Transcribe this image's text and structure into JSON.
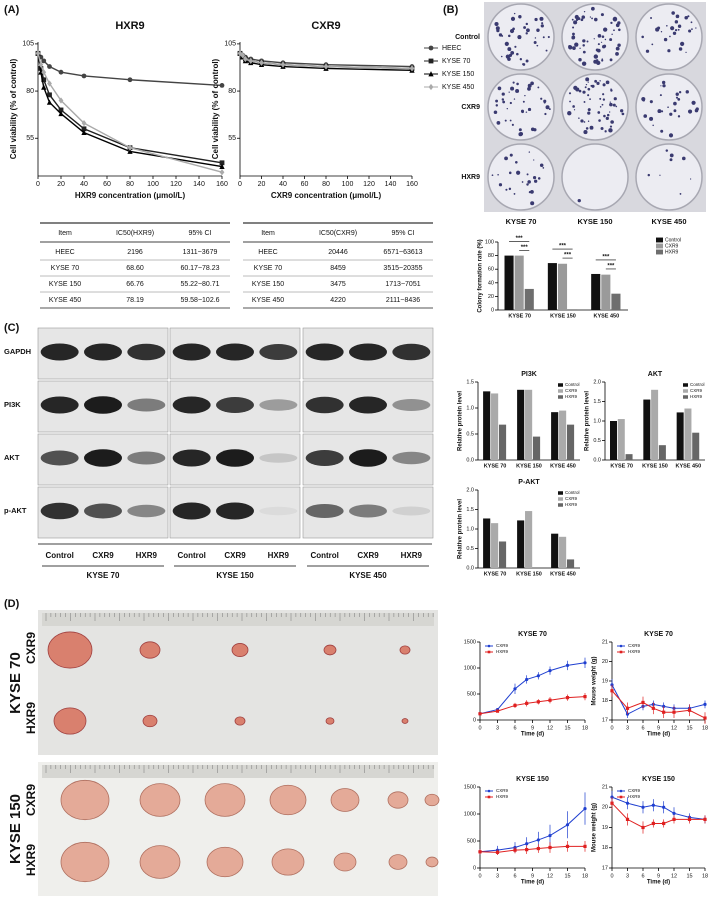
{
  "panels": [
    "(A)",
    "(B)",
    "(C)",
    "(D)"
  ],
  "tables": [
    {
      "columns": [
        "Item",
        "IC50(HXR9)",
        "95% CI"
      ],
      "rows": [
        [
          "HEEC",
          "2196",
          "1311~3679"
        ],
        [
          "KYSE 70",
          "68.60",
          "60.17~78.23"
        ],
        [
          "KYSE 150",
          "66.76",
          "55.22~80.71"
        ],
        [
          "KYSE 450",
          "78.19",
          "59.58~102.6"
        ]
      ]
    },
    {
      "columns": [
        "Item",
        "IC50(CXR9)",
        "95% CI"
      ],
      "rows": [
        [
          "HEEC",
          "20446",
          "6571~63613"
        ],
        [
          "KYSE 70",
          "8459",
          "3515~20355"
        ],
        [
          "KYSE 150",
          "3475",
          "1713~7051"
        ],
        [
          "KYSE 450",
          "4220",
          "2111~8436"
        ]
      ]
    }
  ],
  "plates": {
    "rows": [
      "Control",
      "CXR9",
      "HXR9"
    ],
    "columns": [
      "KYSE 70",
      "KYSE 150",
      "KYSE 450"
    ]
  },
  "blots": {
    "rows": [
      "GAPDH",
      "PI3K",
      "AKT",
      "p-AKT"
    ],
    "lanes": [
      "Control",
      "CXR9",
      "HXR9"
    ],
    "groups": [
      "KYSE 70",
      "KYSE 150",
      "KYSE 450"
    ]
  },
  "tumors": {
    "groups": [
      "KYSE 70",
      "KYSE 150"
    ],
    "rows": [
      "CXR9",
      "HXR9"
    ]
  },
  "chart_data": [
    {
      "type": "line",
      "title": "HXR9",
      "xlabel": "HXR9 concentration (μmol/L)",
      "ylabel": "Cell viability (% of control)",
      "x": [
        0,
        2.5,
        5,
        10,
        20,
        40,
        80,
        160
      ],
      "xlim": [
        0,
        160
      ],
      "xticks": [
        0,
        20,
        40,
        60,
        80,
        100,
        120,
        140,
        160
      ],
      "ylim": [
        35,
        106
      ],
      "yticks": [
        55,
        80,
        105
      ],
      "series": [
        {
          "name": "HEEC",
          "color": "#444444",
          "marker": "circle",
          "values": [
            100,
            98,
            96,
            93,
            90,
            88,
            86,
            83
          ]
        },
        {
          "name": "KYSE 70",
          "color": "#222222",
          "marker": "square",
          "values": [
            100,
            92,
            86,
            78,
            70,
            60,
            50,
            42
          ]
        },
        {
          "name": "KYSE 150",
          "color": "#000000",
          "marker": "triangle",
          "values": [
            100,
            90,
            82,
            74,
            68,
            58,
            48,
            40
          ]
        },
        {
          "name": "KYSE 450",
          "color": "#aaaaaa",
          "marker": "diamond",
          "values": [
            100,
            94,
            90,
            84,
            75,
            63,
            50,
            37
          ]
        }
      ]
    },
    {
      "type": "line",
      "title": "CXR9",
      "xlabel": "CXR9 concentration (μmol/L)",
      "ylabel": "Cell viability (% of control)",
      "x": [
        0,
        2.5,
        5,
        10,
        20,
        40,
        80,
        160
      ],
      "xlim": [
        0,
        160
      ],
      "xticks": [
        0,
        20,
        40,
        60,
        80,
        100,
        120,
        140,
        160
      ],
      "ylim": [
        35,
        106
      ],
      "yticks": [
        55,
        80,
        105
      ],
      "legend": "right",
      "series": [
        {
          "name": "HEEC",
          "color": "#444444",
          "marker": "circle",
          "values": [
            100,
            99,
            98,
            97,
            96,
            95,
            94,
            93
          ]
        },
        {
          "name": "KYSE 70",
          "color": "#222222",
          "marker": "square",
          "values": [
            100,
            98,
            97,
            96,
            95,
            94,
            93,
            92
          ]
        },
        {
          "name": "KYSE 150",
          "color": "#000000",
          "marker": "triangle",
          "values": [
            100,
            98,
            96,
            95,
            94,
            93,
            92,
            91
          ]
        },
        {
          "name": "KYSE 450",
          "color": "#aaaaaa",
          "marker": "diamond",
          "values": [
            100,
            99,
            97,
            96,
            95,
            94,
            93,
            92
          ]
        }
      ]
    },
    {
      "type": "bar",
      "ylabel": "Colony formation rate (%)",
      "categories": [
        "KYSE 70",
        "KYSE 150",
        "KYSE 450"
      ],
      "ylim": [
        0,
        100
      ],
      "yticks": [
        0,
        20,
        40,
        60,
        80,
        100
      ],
      "legend": "right",
      "annotations": [
        "***",
        "***",
        "***",
        "***",
        "***",
        "***"
      ],
      "series": [
        {
          "name": "Control",
          "color": "#111111",
          "values": [
            80,
            69,
            53
          ]
        },
        {
          "name": "CXR9",
          "color": "#9a9a9a",
          "values": [
            80,
            68,
            52
          ]
        },
        {
          "name": "HXR9",
          "color": "#6e6e6e",
          "values": [
            31,
            1,
            24
          ]
        }
      ]
    },
    {
      "type": "bar",
      "title": "PI3K",
      "ylabel": "Relative protein level",
      "categories": [
        "KYSE 70",
        "KYSE 150",
        "KYSE 450"
      ],
      "ylim": [
        0,
        1.5
      ],
      "yticks": [
        {
          "value": 0,
          "label": "0.0"
        },
        0.5,
        {
          "value": 1,
          "label": "1.0"
        },
        1.5
      ],
      "legend": "top-right",
      "series": [
        {
          "name": "Control",
          "color": "#111111",
          "values": [
            1.32,
            1.35,
            0.92
          ]
        },
        {
          "name": "CXR9",
          "color": "#aaaaaa",
          "values": [
            1.28,
            1.35,
            0.95
          ]
        },
        {
          "name": "HXR9",
          "color": "#666666",
          "values": [
            0.68,
            0.45,
            0.68
          ]
        }
      ]
    },
    {
      "type": "bar",
      "title": "AKT",
      "ylabel": "Relative protein level",
      "categories": [
        "KYSE 70",
        "KYSE 150",
        "KYSE 450"
      ],
      "ylim": [
        0,
        2
      ],
      "yticks": [
        {
          "value": 0,
          "label": "0.0"
        },
        0.5,
        {
          "value": 1,
          "label": "1.0"
        },
        1.5,
        {
          "value": 2,
          "label": "2.0"
        }
      ],
      "legend": "top-right",
      "series": [
        {
          "name": "Control",
          "color": "#111111",
          "values": [
            1.0,
            1.55,
            1.22
          ]
        },
        {
          "name": "CXR9",
          "color": "#aaaaaa",
          "values": [
            1.05,
            1.8,
            1.32
          ]
        },
        {
          "name": "HXR9",
          "color": "#666666",
          "values": [
            0.15,
            0.38,
            0.7
          ]
        }
      ]
    },
    {
      "type": "bar",
      "title": "P-AKT",
      "ylabel": "Relative protein level",
      "categories": [
        "KYSE 70",
        "KYSE 150",
        "KYSE 450"
      ],
      "ylim": [
        0,
        2
      ],
      "yticks": [
        {
          "value": 0,
          "label": "0.0"
        },
        0.5,
        {
          "value": 1,
          "label": "1.0"
        },
        1.5,
        {
          "value": 2,
          "label": "2.0"
        }
      ],
      "legend": "top-right",
      "series": [
        {
          "name": "Control",
          "color": "#111111",
          "values": [
            1.27,
            1.22,
            0.88
          ]
        },
        {
          "name": "CXR9",
          "color": "#aaaaaa",
          "values": [
            1.15,
            1.46,
            0.8
          ]
        },
        {
          "name": "HXR9",
          "color": "#666666",
          "values": [
            0.68,
            0,
            0.22
          ]
        }
      ]
    },
    {
      "type": "line",
      "title": "KYSE 70",
      "xlabel": "Time (d)",
      "x": [
        0,
        3,
        6,
        8,
        10,
        12,
        15,
        18
      ],
      "xlim": [
        0,
        18
      ],
      "xticks": [
        0,
        3,
        6,
        9,
        12,
        15,
        18
      ],
      "ylim": [
        0,
        1500
      ],
      "yticks": [
        0,
        500,
        1000,
        1500
      ],
      "legend": "top-left",
      "series": [
        {
          "name": "CXR9",
          "color": "#1f3fd0",
          "marker": "circle",
          "values": [
            120,
            200,
            600,
            780,
            850,
            950,
            1050,
            1100
          ],
          "errors": [
            20,
            30,
            100,
            80,
            70,
            80,
            90,
            100
          ]
        },
        {
          "name": "HXR9",
          "color": "#e02020",
          "marker": "square",
          "values": [
            120,
            170,
            280,
            320,
            350,
            380,
            430,
            450
          ],
          "errors": [
            20,
            20,
            50,
            60,
            50,
            60,
            60,
            70
          ]
        }
      ]
    },
    {
      "type": "line",
      "title": "KYSE 70",
      "xlabel": "Time (d)",
      "ylabel": "Mouse weight (g)",
      "x": [
        0,
        3,
        6,
        8,
        10,
        12,
        15,
        18
      ],
      "xlim": [
        0,
        18
      ],
      "xticks": [
        0,
        3,
        6,
        9,
        12,
        15,
        18
      ],
      "ylim": [
        17,
        21
      ],
      "yticks": [
        17,
        18,
        19,
        20,
        21
      ],
      "legend": "top-left",
      "series": [
        {
          "name": "CXR9",
          "color": "#1f3fd0",
          "marker": "circle",
          "values": [
            18.8,
            17.3,
            17.7,
            17.8,
            17.7,
            17.6,
            17.6,
            17.8
          ],
          "errors": [
            0.3,
            0.2,
            0.2,
            0.2,
            0.2,
            0.2,
            0.2,
            0.2
          ]
        },
        {
          "name": "HXR9",
          "color": "#e02020",
          "marker": "square",
          "values": [
            18.5,
            17.6,
            17.9,
            17.6,
            17.4,
            17.4,
            17.5,
            17.1
          ],
          "errors": [
            0.3,
            0.3,
            0.3,
            0.3,
            0.3,
            0.3,
            0.3,
            0.3
          ]
        }
      ]
    },
    {
      "type": "line",
      "title": "KYSE 150",
      "xlabel": "Time (d)",
      "x": [
        0,
        3,
        6,
        8,
        10,
        12,
        15,
        18
      ],
      "xlim": [
        0,
        18
      ],
      "xticks": [
        0,
        3,
        6,
        9,
        12,
        15,
        18
      ],
      "ylim": [
        0,
        1500
      ],
      "yticks": [
        0,
        500,
        1000,
        1500
      ],
      "legend": "top-left",
      "series": [
        {
          "name": "CXR9",
          "color": "#1f3fd0",
          "marker": "circle",
          "values": [
            300,
            330,
            380,
            450,
            520,
            600,
            800,
            1100
          ],
          "errors": [
            50,
            80,
            100,
            120,
            150,
            200,
            250,
            300
          ]
        },
        {
          "name": "HXR9",
          "color": "#e02020",
          "marker": "square",
          "values": [
            300,
            290,
            330,
            340,
            360,
            380,
            400,
            400
          ],
          "errors": [
            50,
            50,
            60,
            80,
            80,
            100,
            100,
            100
          ]
        }
      ]
    },
    {
      "type": "line",
      "title": "KYSE 150",
      "xlabel": "Time (d)",
      "ylabel": "Mouse weight (g)",
      "x": [
        0,
        3,
        6,
        8,
        10,
        12,
        15,
        18
      ],
      "xlim": [
        0,
        18
      ],
      "xticks": [
        0,
        3,
        6,
        9,
        12,
        15,
        18
      ],
      "ylim": [
        17,
        21
      ],
      "yticks": [
        17,
        18,
        19,
        20,
        21
      ],
      "legend": "top-left",
      "series": [
        {
          "name": "CXR9",
          "color": "#1f3fd0",
          "marker": "circle",
          "values": [
            20.5,
            20.2,
            20.0,
            20.1,
            20.0,
            19.7,
            19.5,
            19.4
          ],
          "errors": [
            0.3,
            0.3,
            0.3,
            0.3,
            0.3,
            0.3,
            0.2,
            0.2
          ]
        },
        {
          "name": "HXR9",
          "color": "#e02020",
          "marker": "square",
          "values": [
            20.2,
            19.4,
            19.0,
            19.2,
            19.2,
            19.4,
            19.4,
            19.4
          ],
          "errors": [
            0.3,
            0.3,
            0.3,
            0.2,
            0.2,
            0.2,
            0.2,
            0.2
          ]
        }
      ]
    }
  ]
}
